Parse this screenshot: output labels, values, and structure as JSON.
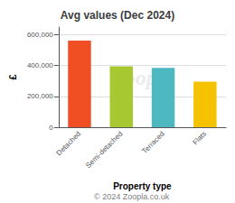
{
  "chart_data": {
    "type": "bar",
    "title": "Avg values (Dec 2024)",
    "categories": [
      "Detached",
      "Semi-detached",
      "Terraced",
      "Flats"
    ],
    "values": [
      562000,
      395000,
      385000,
      295000
    ],
    "colors": [
      "#f04e23",
      "#a8c832",
      "#4db8c0",
      "#f5c200"
    ],
    "ylabel": "£",
    "xlabel": "Property type",
    "annotations": [
      "Zoopla",
      "© 2024 Zoopla.co.uk"
    ],
    "ylim": [
      0,
      650000
    ],
    "yticks": [
      0,
      {
        "value": 200000,
        "label": "200,000"
      },
      {
        "value": 400000,
        "label": "400,000"
      },
      {
        "value": 600000,
        "label": "600,000"
      }
    ],
    "grid": true
  }
}
